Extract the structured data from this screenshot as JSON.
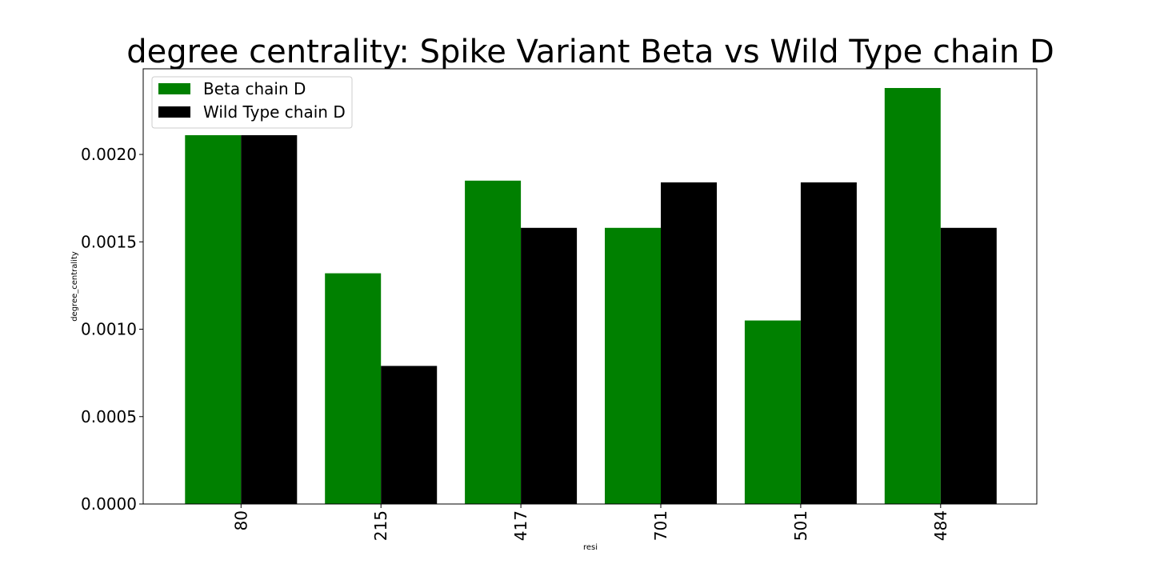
{
  "chart_data": {
    "type": "bar",
    "title": "degree centrality: Spike Variant Beta vs Wild Type chain D",
    "xlabel": "resi",
    "ylabel": "degree_centrality",
    "categories": [
      "80",
      "215",
      "417",
      "701",
      "501",
      "484"
    ],
    "series": [
      {
        "name": "Beta chain D",
        "color": "#008000",
        "values": [
          0.00211,
          0.00132,
          0.00185,
          0.00158,
          0.00105,
          0.00238
        ]
      },
      {
        "name": "Wild Type chain D",
        "color": "#000000",
        "values": [
          0.00211,
          0.00079,
          0.00158,
          0.00184,
          0.00184,
          0.00158
        ]
      }
    ],
    "ylim": [
      0,
      0.00249
    ],
    "yticks": [
      "0.0000",
      "0.0005",
      "0.0010",
      "0.0015",
      "0.0020"
    ],
    "ytick_values": [
      0,
      0.0005,
      0.001,
      0.0015,
      0.002
    ],
    "legend_position": "upper-left",
    "grid": false
  }
}
